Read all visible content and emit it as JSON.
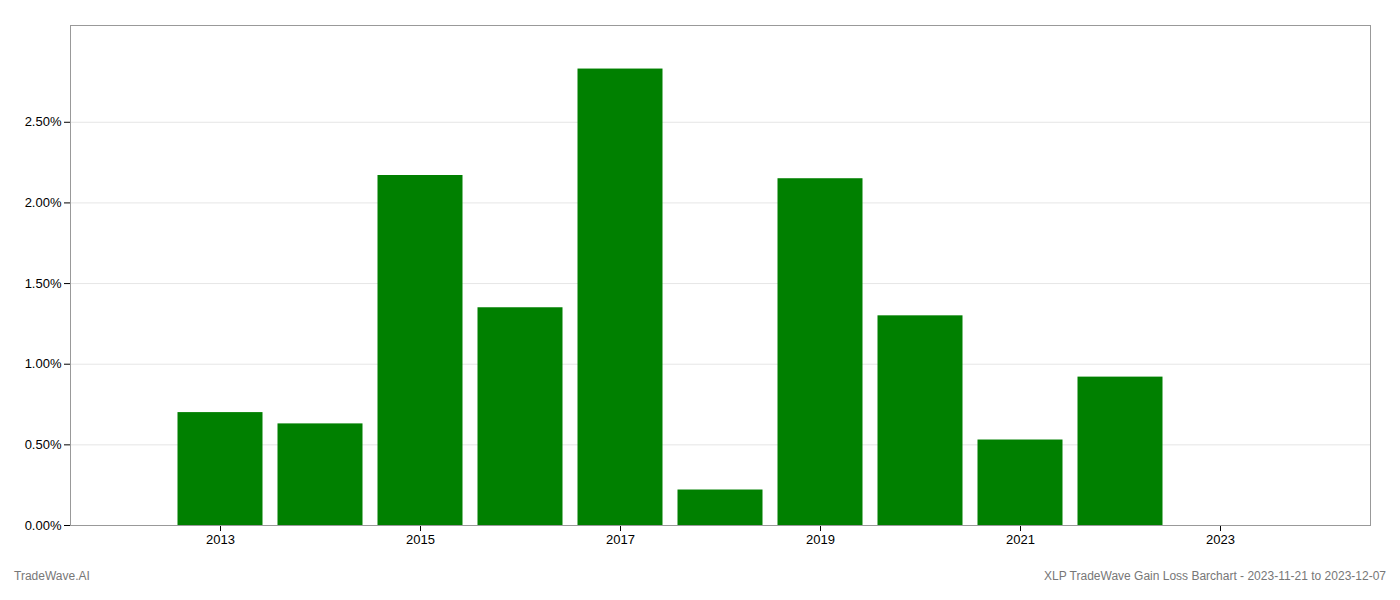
{
  "chart_data": {
    "type": "bar",
    "x": [
      2013,
      2014,
      2015,
      2016,
      2017,
      2018,
      2019,
      2020,
      2021,
      2022
    ],
    "values": [
      0.007,
      0.0063,
      0.0217,
      0.0135,
      0.0283,
      0.0022,
      0.0215,
      0.013,
      0.0053,
      0.0092
    ],
    "color": "#008000",
    "xlim": [
      2011.5,
      2024.5
    ],
    "xticks": [
      2013,
      2015,
      2017,
      2019,
      2021,
      2023
    ],
    "ylim": [
      0,
      0.031
    ],
    "yticks": [
      {
        "value": 0.0,
        "label": "0.00%"
      },
      {
        "value": 0.005,
        "label": "0.50%"
      },
      {
        "value": 0.01,
        "label": "1.00%"
      },
      {
        "value": 0.015,
        "label": "1.50%"
      },
      {
        "value": 0.02,
        "label": "2.00%"
      },
      {
        "value": 0.025,
        "label": "2.50%"
      }
    ],
    "grid": true,
    "annotations": [
      "TradeWave.AI",
      "XLP TradeWave Gain Loss Barchart - 2023-11-21 to 2023-12-07"
    ]
  }
}
